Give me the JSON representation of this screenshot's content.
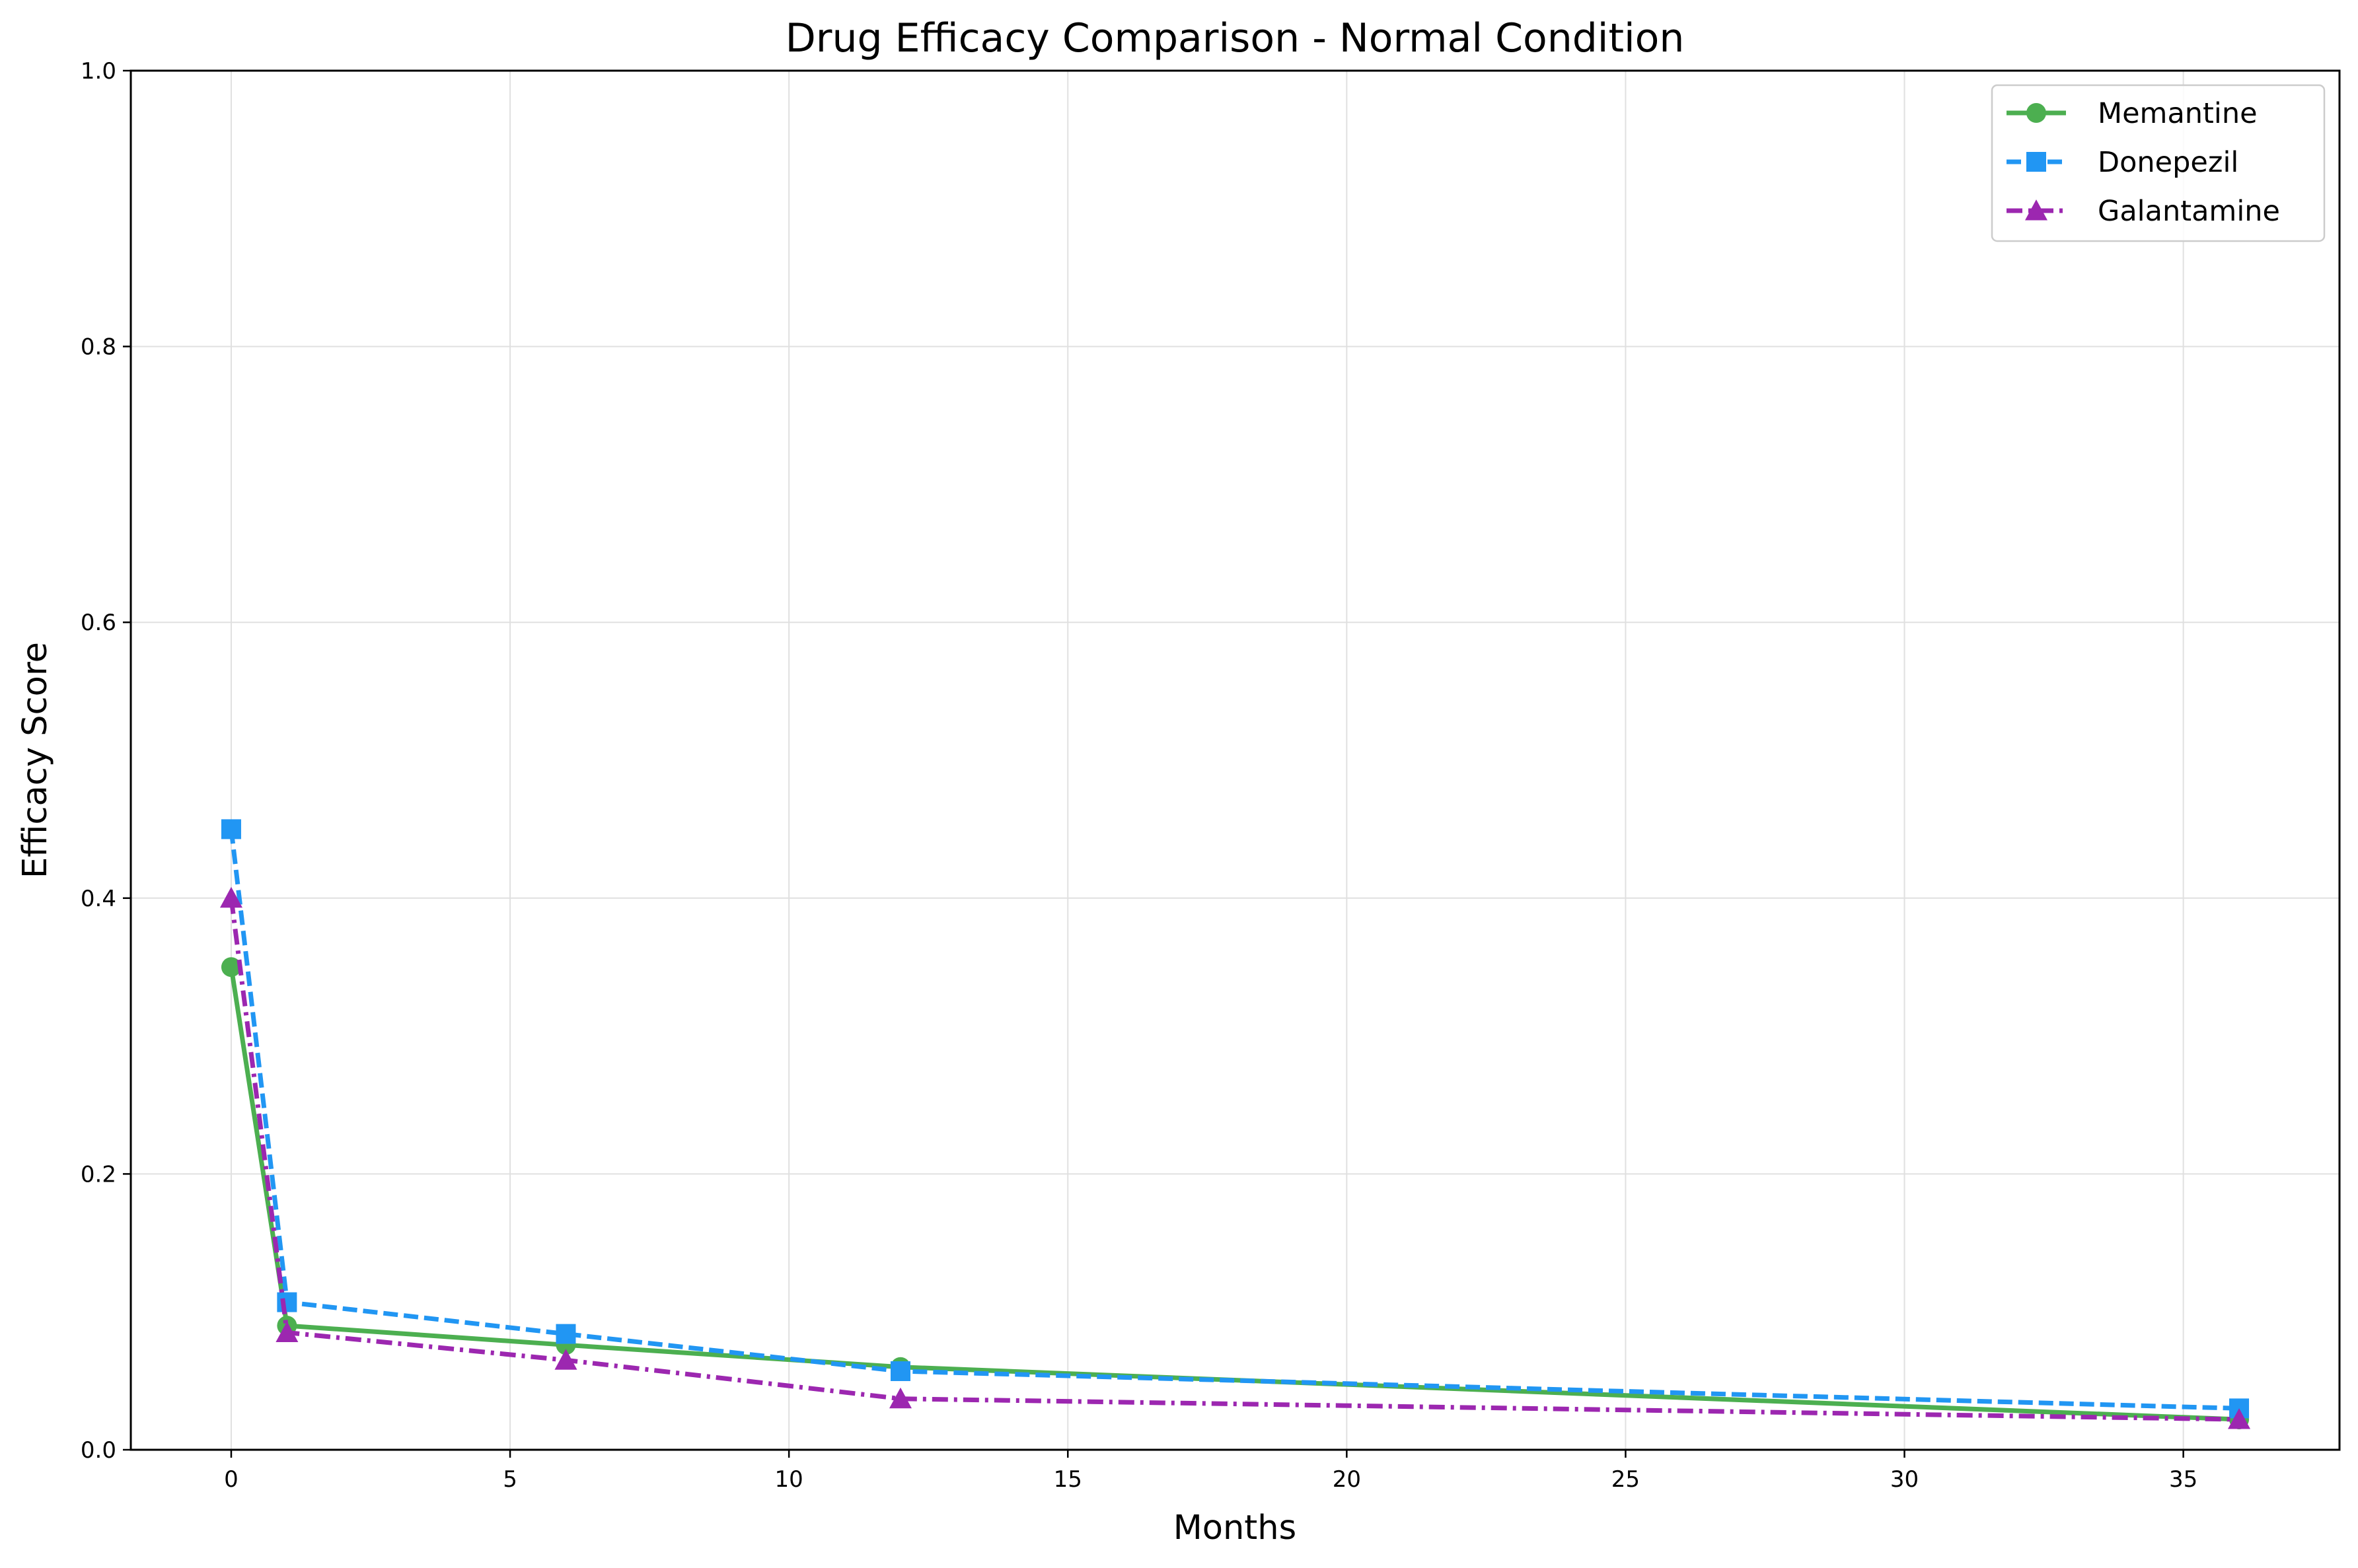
{
  "chart_data": {
    "type": "line",
    "title": "Drug Efficacy Comparison - Normal Condition",
    "xlabel": "Months",
    "ylabel": "Efficacy Score",
    "xlim": [
      -1.8,
      37.8
    ],
    "ylim": [
      0,
      1.0
    ],
    "x_ticks": [
      0,
      5,
      10,
      15,
      20,
      25,
      30,
      35
    ],
    "y_ticks": [
      0.0,
      0.2,
      0.4,
      0.6,
      0.8,
      1.0
    ],
    "x_tick_labels": [
      "0",
      "5",
      "10",
      "15",
      "20",
      "25",
      "30",
      "35"
    ],
    "y_tick_labels": [
      "0.0",
      "0.2",
      "0.4",
      "0.6",
      "0.8",
      "1.0"
    ],
    "grid": true,
    "legend_position": "top-right",
    "x": [
      0,
      1,
      6,
      12,
      36
    ],
    "series": [
      {
        "name": "Memantine",
        "values": [
          0.35,
          0.09,
          0.076,
          0.06,
          0.022
        ],
        "color": "#4caf50",
        "marker": "circle",
        "line_style": "solid"
      },
      {
        "name": "Donepezil",
        "values": [
          0.45,
          0.107,
          0.084,
          0.057,
          0.03
        ],
        "color": "#2196f3",
        "marker": "square",
        "line_style": "dashed"
      },
      {
        "name": "Galantamine",
        "values": [
          0.4,
          0.085,
          0.065,
          0.037,
          0.022
        ],
        "color": "#9c27b0",
        "marker": "triangle",
        "line_style": "dashdot"
      }
    ]
  }
}
